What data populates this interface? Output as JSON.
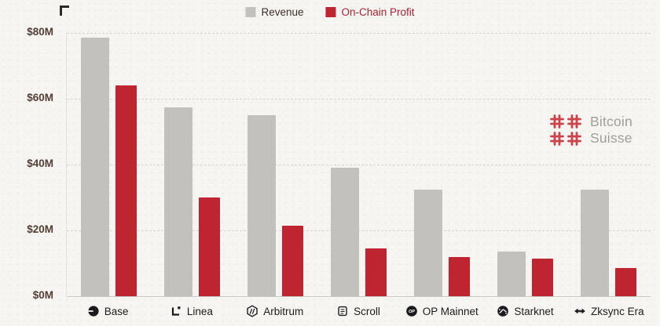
{
  "legend": {
    "revenue_label": "Revenue",
    "profit_label": "On-Chain Profit"
  },
  "watermark": {
    "line1": "Bitcoin",
    "line2": "Suisse"
  },
  "icon_text": {
    "op": "OP"
  },
  "colors": {
    "revenue": "#c3c1be",
    "profit": "#bf2531",
    "background": "#f6f5f1",
    "grid": "#d8d5ce",
    "axis_text": "#533f36",
    "label_text": "#1d1d1b",
    "watermark_text": "#a19f9c",
    "watermark_logo": "#c5242f"
  },
  "y_axis": {
    "ticks": [
      "$80M",
      "$60M",
      "$40M",
      "$20M",
      "$0M"
    ],
    "prefix": "$",
    "unit": "M"
  },
  "chart_data": {
    "type": "bar",
    "title": "",
    "categories": [
      "Base",
      "Linea",
      "Arbitrum",
      "Scroll",
      "OP Mainnet",
      "Starknet",
      "Zksync Era"
    ],
    "icons": [
      "base-icon",
      "linea-icon",
      "arbitrum-icon",
      "scroll-icon",
      "op-mainnet-icon",
      "starknet-icon",
      "zksync-era-icon"
    ],
    "series": [
      {
        "name": "Revenue",
        "color_key": "revenue",
        "values": [
          78.5,
          57.5,
          55,
          39,
          32.5,
          13.5,
          32.5
        ]
      },
      {
        "name": "On-Chain Profit",
        "color_key": "profit",
        "values": [
          64,
          30,
          21.5,
          14.5,
          12,
          11.5,
          8.5
        ]
      }
    ],
    "ylim": [
      0,
      80
    ],
    "y_unit": "M USD",
    "grid": true,
    "legend_position": "top"
  }
}
